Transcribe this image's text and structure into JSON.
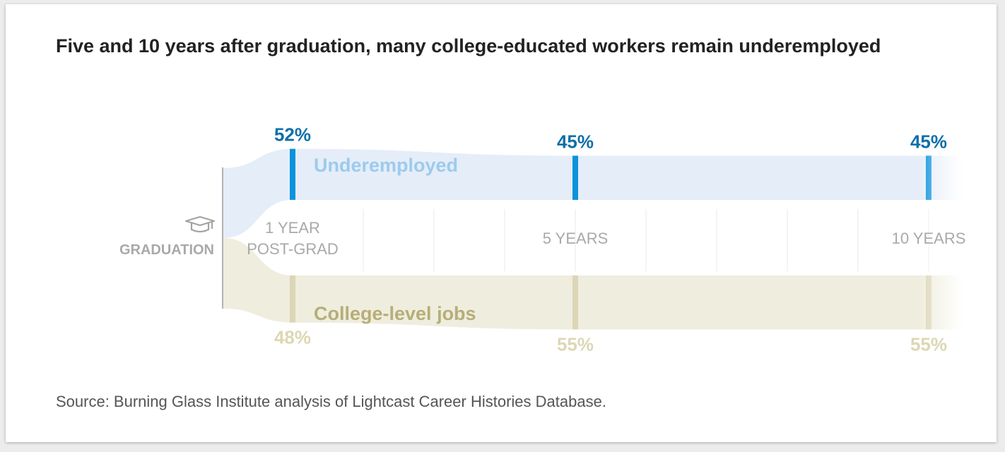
{
  "title": "Five and 10 years after graduation, many college-educated workers remain underemployed",
  "source": "Source: Burning Glass Institute analysis of Lightcast Career Histories Database.",
  "origin_label": "GRADUATION",
  "icon": "graduation-cap-icon",
  "colors": {
    "underemployed_fill": "#e5edf8",
    "underemployed_marker": "#0b93dc",
    "underemployed_value": "#0e6fa8",
    "underemployed_label": "#9ccbec",
    "college_fill": "#efedde",
    "college_marker": "#dcd6b6",
    "college_value": "#ddd7b4",
    "college_label": "#b6ae78"
  },
  "chart_data": {
    "type": "area",
    "categories": [
      "1 YEAR POST-GRAD",
      "5 YEARS",
      "10 YEARS"
    ],
    "category_lines": [
      [
        "1 YEAR",
        "POST-GRAD"
      ],
      [
        "5 YEARS"
      ],
      [
        "10 YEARS"
      ]
    ],
    "series": [
      {
        "name": "Underemployed",
        "values": [
          52,
          45,
          45
        ],
        "labels": [
          "52%",
          "45%",
          "45%"
        ]
      },
      {
        "name": "College-level jobs",
        "values": [
          48,
          55,
          55
        ],
        "labels": [
          "48%",
          "55%",
          "55%"
        ]
      }
    ],
    "unit": "%"
  }
}
